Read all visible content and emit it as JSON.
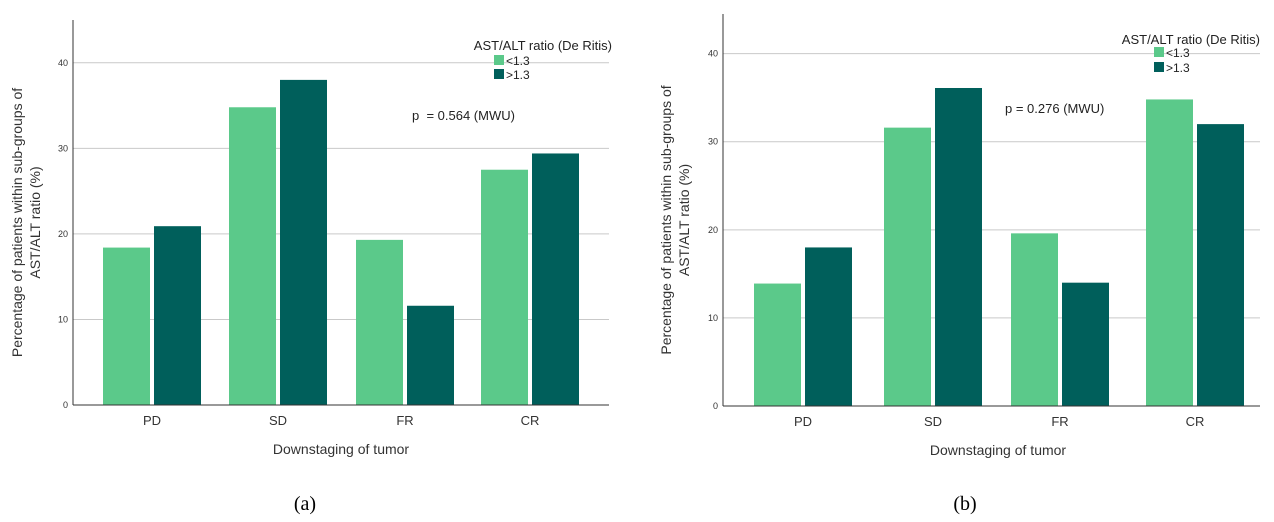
{
  "chart_data": [
    {
      "type": "bar",
      "panel_label": "(a)",
      "categories": [
        "PD",
        "SD",
        "FR",
        "CR"
      ],
      "series": [
        {
          "name": "<1.3",
          "color": "#5bc98a",
          "values": [
            18.4,
            34.8,
            19.3,
            27.5
          ]
        },
        {
          "name": ">1.3",
          "color": "#005f5b",
          "values": [
            20.9,
            38.0,
            11.6,
            29.4
          ]
        }
      ],
      "xlabel": "Downstaging of tumor",
      "ylabel_lines": [
        "Percentage of patients within sub-groups of",
        "AST/ALT ratio (%)"
      ],
      "legend_title": "AST/ALT ratio (De Ritis)",
      "legend_position": "top-right",
      "annotation": "p  = 0.564 (MWU)",
      "ylim": [
        0,
        45
      ],
      "yticks": [
        "0",
        "10",
        "20",
        "30",
        "40"
      ],
      "grid": "horizontal"
    },
    {
      "type": "bar",
      "panel_label": "(b)",
      "categories": [
        "PD",
        "SD",
        "FR",
        "CR"
      ],
      "series": [
        {
          "name": "<1.3",
          "color": "#5bc98a",
          "values": [
            13.9,
            31.6,
            19.6,
            34.8
          ]
        },
        {
          "name": ">1.3",
          "color": "#005f5b",
          "values": [
            18.0,
            36.1,
            14.0,
            32.0
          ]
        }
      ],
      "xlabel": "Downstaging of tumor",
      "ylabel_lines": [
        "Percentage of patients within sub-groups of",
        "AST/ALT ratio (%)"
      ],
      "legend_title": "AST/ALT ratio (De Ritis)",
      "legend_position": "top-right",
      "annotation": "p = 0.276 (MWU)",
      "ylim": [
        0,
        44.5
      ],
      "yticks": [
        "0",
        "10",
        "20",
        "30",
        "40"
      ],
      "grid": "horizontal"
    }
  ]
}
